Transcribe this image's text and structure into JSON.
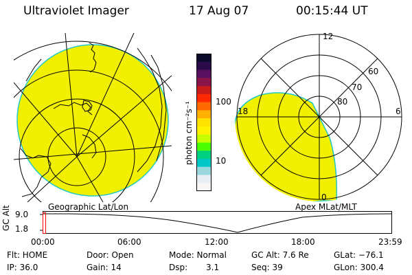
{
  "header": {
    "title": "Ultraviolet Imager",
    "date": "17 Aug 07",
    "time": "00:15:44 UT"
  },
  "colorbar": {
    "unit_label": "photon cm⁻²s⁻¹",
    "tick_100": "100",
    "tick_10": "10",
    "colors": [
      "#0b0a2a",
      "#2a0b4a",
      "#5a1060",
      "#8a1548",
      "#c81b1b",
      "#ff2a00",
      "#ff6a00",
      "#ffb000",
      "#ffe100",
      "#fff200",
      "#c8ff00",
      "#4cff00",
      "#00d080",
      "#00c8c8",
      "#9ad8e0",
      "#e8eef2",
      "#f6f6f6"
    ]
  },
  "geo_map": {
    "label": "Geographic Lat/Lon",
    "fill_color": "#f0f000"
  },
  "polar_plot": {
    "label": "Apex MLat/MLT",
    "mlt_12": "12",
    "mlt_18": "18",
    "mlt_6": "6",
    "mlt_0": "0",
    "lat_60": "60",
    "lat_70": "70",
    "lat_80": "80"
  },
  "timeline": {
    "axis_label": "GC Alt",
    "y_top": "9.0",
    "y_bottom": "1.8",
    "ticks": [
      "00:00",
      "06:00",
      "12:00",
      "18:00",
      "23:59"
    ],
    "marker_color": "#ff0000"
  },
  "footer": {
    "flt": "Flt: HOME",
    "ip": "IP: 36.0",
    "door": "Door: Open",
    "gain": "Gain: 14",
    "mode": "Mode: Normal",
    "dsp_label": "Dsp:",
    "dsp_value": "3.1",
    "gc_alt": "GC Alt: 7.6 Re",
    "seq": "Seq: 39",
    "glat": "GLat: −76.1",
    "glon": "GLon: 300.4"
  }
}
